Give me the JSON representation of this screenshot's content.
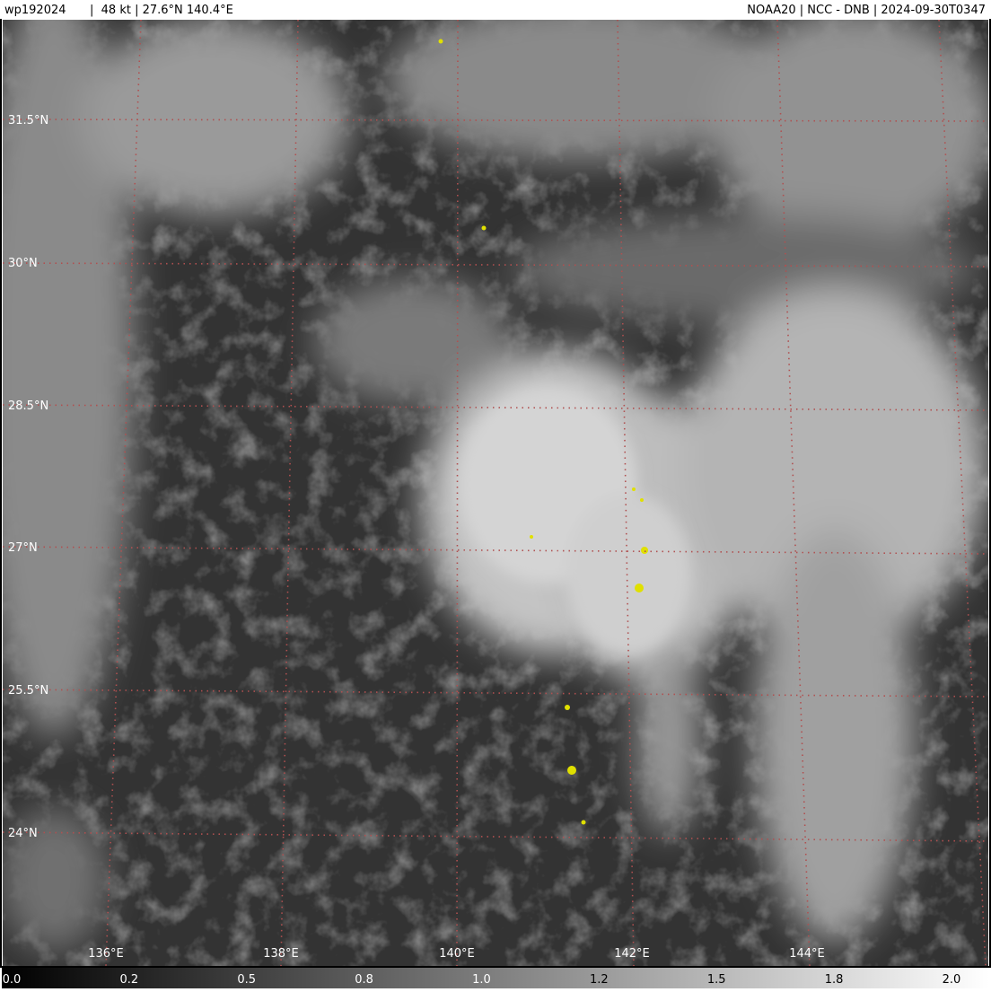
{
  "header": {
    "storm_id": "wp192024",
    "storm_info": "|  48 kt | 27.6°N 140.4°E",
    "source": "NOAA20 | NCC - DNB | 2024-09-30T0347"
  },
  "grid": {
    "lat_labels": [
      "31.5°N",
      "30°N",
      "28.5°N",
      "27°N",
      "25.5°N",
      "24°N"
    ],
    "lon_labels": [
      "136°E",
      "138°E",
      "140°E",
      "142°E",
      "144°E"
    ]
  },
  "colorbar": {
    "ticks": [
      "0.0",
      "0.2",
      "0.5",
      "0.8",
      "1.0",
      "1.2",
      "1.5",
      "1.8",
      "2.0"
    ]
  }
}
